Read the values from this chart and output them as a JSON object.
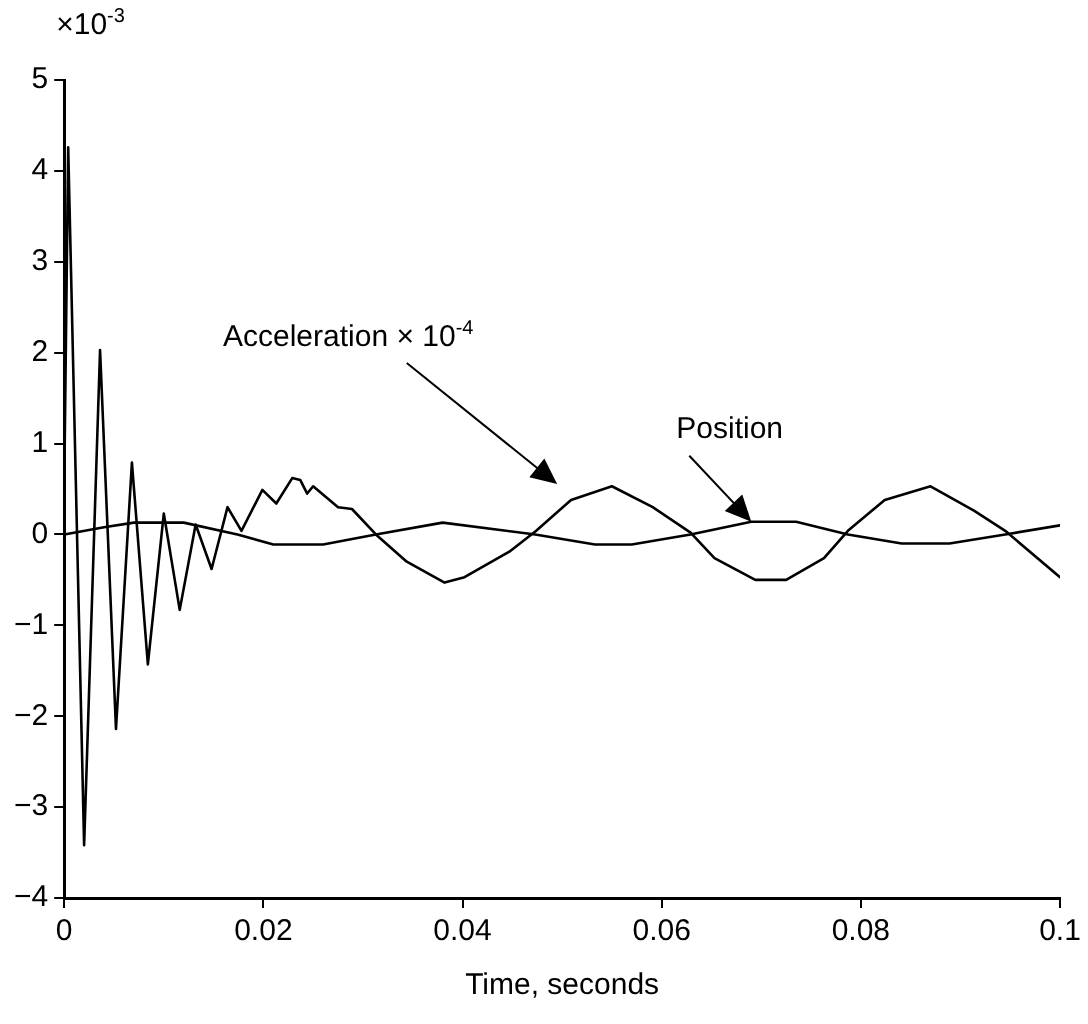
{
  "chart_data": {
    "type": "line",
    "xlabel": "Time, seconds",
    "ylabel": "×10$^{-3}$",
    "xlim": [
      0,
      0.1
    ],
    "xticks": [
      0,
      0.02,
      0.04,
      0.06,
      0.08,
      0.1
    ],
    "ylim": [
      -4,
      5
    ],
    "yticks": [
      -4,
      -3,
      -2,
      -1,
      0,
      1,
      2,
      3,
      4,
      5
    ],
    "grid": false,
    "legend": false,
    "marker": "none",
    "line_style": "solid",
    "series": [
      {
        "color": "#000000",
        "x": [
          0,
          0.0004,
          0.002,
          0.0036,
          0.0052,
          0.0068,
          0.0084,
          0.01,
          0.0116,
          0.0132,
          0.0148,
          0.0164,
          0.0178,
          0.0199,
          0.0213,
          0.0229,
          0.0237,
          0.0244,
          0.025,
          0.0275,
          0.0289,
          0.0313,
          0.0344,
          0.0382,
          0.0402,
          0.0447,
          0.0474,
          0.0509,
          0.055,
          0.0591,
          0.0629,
          0.0653,
          0.0694,
          0.0725,
          0.0763,
          0.0787,
          0.0824,
          0.087,
          0.0914,
          0.0945,
          0.1
        ],
        "values": [
          0.5,
          4.26,
          -3.42,
          2.03,
          -2.14,
          0.79,
          -1.43,
          0.23,
          -0.83,
          0.11,
          -0.38,
          0.3,
          0.04,
          0.49,
          0.34,
          0.62,
          0.6,
          0.45,
          0.53,
          0.3,
          0.28,
          0,
          -0.3,
          -0.53,
          -0.47,
          -0.19,
          0.04,
          0.38,
          0.53,
          0.3,
          0.02,
          -0.26,
          -0.5,
          -0.5,
          -0.26,
          0.04,
          0.38,
          0.53,
          0.26,
          0.04,
          -0.47
        ]
      },
      {
        "color": "#000000",
        "x": [
          0,
          0.004,
          0.007,
          0.012,
          0.0174,
          0.021,
          0.026,
          0.0313,
          0.038,
          0.0473,
          0.0533,
          0.057,
          0.0629,
          0.069,
          0.0735,
          0.0787,
          0.0841,
          0.0889,
          0.0945,
          0.1
        ],
        "values": [
          0,
          0.08,
          0.13,
          0.13,
          0,
          -0.11,
          -0.11,
          0,
          0.13,
          0,
          -0.11,
          -0.11,
          0,
          0.14,
          0.14,
          0,
          -0.1,
          -0.1,
          0,
          0.1
        ]
      }
    ],
    "annotations": [
      "Acceleration × 10$^{-4}$",
      {
        "text": "Position",
        "x": 0.069,
        "y": 0.14
      }
    ]
  }
}
